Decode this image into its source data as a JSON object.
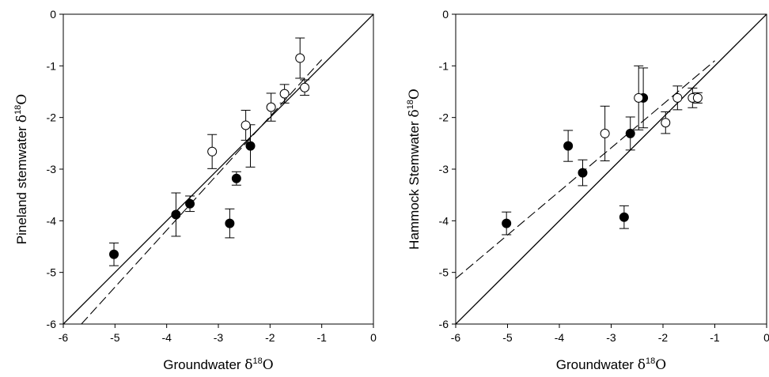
{
  "chart_data": [
    {
      "type": "scatter",
      "xlabel": {
        "prefix": "Groundwater ",
        "delta": "δ",
        "sup": "18",
        "suffix": "O"
      },
      "ylabel": {
        "prefix": "Pineland stemwater ",
        "delta": "δ",
        "sup": "18",
        "suffix": "O"
      },
      "xlim": [
        -6,
        0
      ],
      "ylim": [
        -6,
        0
      ],
      "xticks": [
        "-6",
        "-5",
        "-4",
        "-3",
        "-2",
        "-1",
        "0"
      ],
      "yticks": [
        "-6",
        "-5",
        "-4",
        "-3",
        "-2",
        "-1",
        "0"
      ],
      "grid": false,
      "series": [
        {
          "marker": "filled-circle",
          "points": [
            {
              "x": -5.02,
              "y": -4.65,
              "err": 0.22
            },
            {
              "x": -3.82,
              "y": -3.88,
              "err": 0.42
            },
            {
              "x": -3.55,
              "y": -3.67,
              "err": 0.15
            },
            {
              "x": -2.78,
              "y": -4.05,
              "err": 0.28
            },
            {
              "x": -2.65,
              "y": -3.18,
              "err": 0.13
            },
            {
              "x": -2.38,
              "y": -2.55,
              "err": 0.41
            }
          ]
        },
        {
          "marker": "open-circle",
          "points": [
            {
              "x": -3.12,
              "y": -2.66,
              "err": 0.33
            },
            {
              "x": -2.47,
              "y": -2.15,
              "err": 0.29
            },
            {
              "x": -1.98,
              "y": -1.8,
              "err": 0.27
            },
            {
              "x": -1.72,
              "y": -1.54,
              "err": 0.18
            },
            {
              "x": -1.42,
              "y": -0.85,
              "err": 0.39
            },
            {
              "x": -1.33,
              "y": -1.42,
              "err": 0.15
            }
          ]
        }
      ],
      "lines": [
        {
          "style": "solid",
          "x": [
            -6,
            0
          ],
          "y": [
            -6,
            0
          ]
        },
        {
          "style": "dashed",
          "x": [
            -5.65,
            -1.0
          ],
          "y": [
            -6.0,
            -0.88
          ]
        }
      ]
    },
    {
      "type": "scatter",
      "xlabel": {
        "prefix": "Groundwater ",
        "delta": "δ",
        "sup": "18",
        "suffix": "O"
      },
      "ylabel": {
        "prefix": "Hammock Stemwater ",
        "delta": "δ",
        "sup": "18",
        "suffix": "O"
      },
      "xlim": [
        -6,
        0
      ],
      "ylim": [
        -6,
        0
      ],
      "xticks": [
        "-6",
        "-5",
        "-4",
        "-3",
        "-2",
        "-1",
        "0"
      ],
      "yticks": [
        "-6",
        "-5",
        "-4",
        "-3",
        "-2",
        "-1",
        "0"
      ],
      "grid": false,
      "series": [
        {
          "marker": "filled-circle",
          "points": [
            {
              "x": -5.02,
              "y": -4.05,
              "err": 0.22
            },
            {
              "x": -3.83,
              "y": -2.55,
              "err": 0.3
            },
            {
              "x": -3.55,
              "y": -3.07,
              "err": 0.25
            },
            {
              "x": -2.75,
              "y": -3.93,
              "err": 0.22
            },
            {
              "x": -2.63,
              "y": -2.31,
              "err": 0.32
            },
            {
              "x": -2.38,
              "y": -1.62,
              "err": 0.58
            }
          ]
        },
        {
          "marker": "open-circle",
          "points": [
            {
              "x": -3.12,
              "y": -2.31,
              "err": 0.53
            },
            {
              "x": -2.47,
              "y": -1.62,
              "err": 0.62
            },
            {
              "x": -1.95,
              "y": -2.1,
              "err": 0.21
            },
            {
              "x": -1.72,
              "y": -1.62,
              "err": 0.23
            },
            {
              "x": -1.43,
              "y": -1.62,
              "err": 0.19
            },
            {
              "x": -1.33,
              "y": -1.62,
              "err": 0.1
            }
          ]
        }
      ],
      "lines": [
        {
          "style": "solid",
          "x": [
            -6,
            0
          ],
          "y": [
            -6,
            0
          ]
        },
        {
          "style": "dashed",
          "x": [
            -6,
            -1.0
          ],
          "y": [
            -5.12,
            -0.9
          ]
        }
      ]
    }
  ]
}
